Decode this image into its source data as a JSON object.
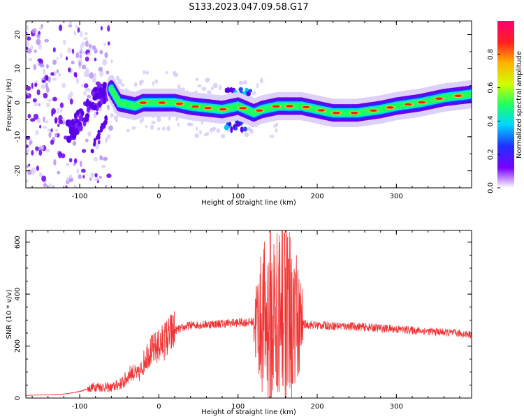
{
  "title": "S133.2023.047.09.58.G17",
  "chart_data": [
    {
      "type": "heatmap",
      "xlabel": "Height of straight line (km)",
      "ylabel": "Frequency (Hz)",
      "xlim": [
        -168,
        395
      ],
      "ylim": [
        -25,
        24
      ],
      "xticks": [
        -100,
        0,
        100,
        200,
        300
      ],
      "yticks": [
        -20,
        -10,
        0,
        10,
        20
      ],
      "colorbar": {
        "label": "Normalized spectral amplitude",
        "range": [
          0,
          1
        ],
        "ticks": [
          "0.0",
          "0.2",
          "0.4",
          "0.6",
          "0.8"
        ]
      },
      "ridge": {
        "x": [
          -110,
          -100,
          -90,
          -80,
          -70,
          -60,
          -55,
          -50,
          -40,
          -30,
          -20,
          0,
          20,
          40,
          60,
          80,
          100,
          110,
          120,
          130,
          150,
          180,
          200,
          220,
          250,
          280,
          300,
          330,
          360,
          395
        ],
        "y": [
          -8,
          -5,
          -2,
          1,
          3,
          4,
          2,
          0,
          -0.5,
          -1,
          0,
          0,
          0,
          -1,
          -1.5,
          -2,
          -1,
          -2,
          -3,
          -2,
          -1,
          -1,
          -2,
          -3,
          -3,
          -2,
          -1,
          0,
          1.5,
          2.5
        ]
      }
    },
    {
      "type": "line",
      "xlabel": "Height of straight line (km)",
      "ylabel": "SNR (10 * v/v)",
      "xlim": [
        -168,
        395
      ],
      "ylim": [
        0,
        645
      ],
      "xticks": [
        -100,
        0,
        100,
        200,
        300
      ],
      "yticks": [
        0,
        200,
        400,
        600
      ],
      "color": "#f03232",
      "envelope": {
        "x": [
          -168,
          -120,
          -100,
          -80,
          -60,
          -45,
          -35,
          -25,
          -15,
          0,
          20,
          40,
          70,
          100,
          130,
          150,
          160,
          170,
          180,
          200,
          250,
          300,
          350,
          395
        ],
        "y": [
          10,
          15,
          25,
          45,
          40,
          60,
          100,
          90,
          170,
          200,
          260,
          280,
          285,
          290,
          295,
          300,
          300,
          295,
          285,
          280,
          275,
          265,
          255,
          245
        ]
      }
    }
  ]
}
